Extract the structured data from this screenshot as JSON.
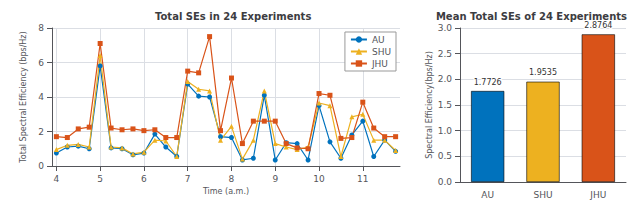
{
  "chart_data": [
    {
      "type": "line",
      "title": "Total SEs in 24 Experiments",
      "xlabel": "Time (a.m.)",
      "ylabel": "Total Spectral Efficiency (bps/Hz)",
      "x": [
        4.0,
        4.25,
        4.5,
        4.75,
        5.0,
        5.25,
        5.5,
        5.75,
        6.0,
        6.25,
        6.5,
        6.75,
        7.0,
        7.25,
        7.5,
        7.75,
        8.0,
        8.25,
        8.5,
        8.75,
        9.0,
        9.25,
        9.5,
        9.75,
        10.0,
        10.25,
        10.5,
        10.75,
        11.0,
        11.25,
        11.5,
        11.75
      ],
      "series": [
        {
          "name": "AU",
          "color": "#0072BD",
          "marker": "circle",
          "values": [
            0.75,
            1.1,
            1.15,
            1.0,
            5.8,
            1.05,
            1.0,
            0.65,
            0.75,
            1.85,
            1.1,
            0.55,
            4.75,
            4.05,
            4.0,
            1.7,
            1.65,
            0.35,
            0.45,
            4.1,
            0.35,
            1.35,
            1.3,
            0.35,
            3.5,
            1.4,
            0.45,
            1.8,
            2.6,
            0.55,
            1.5,
            0.85
          ]
        },
        {
          "name": "SHU",
          "color": "#EDB120",
          "marker": "triangle",
          "values": [
            0.95,
            1.2,
            1.25,
            1.1,
            6.4,
            1.1,
            1.05,
            0.7,
            0.8,
            1.5,
            1.45,
            0.55,
            4.9,
            4.45,
            4.35,
            1.5,
            2.3,
            0.4,
            1.5,
            4.35,
            1.3,
            1.1,
            0.95,
            1.1,
            3.65,
            3.5,
            0.55,
            2.85,
            3.0,
            1.5,
            1.5,
            0.9
          ]
        },
        {
          "name": "JHU",
          "color": "#D95319",
          "marker": "square",
          "values": [
            1.7,
            1.65,
            2.15,
            2.25,
            7.1,
            2.2,
            2.1,
            2.15,
            2.05,
            2.1,
            1.65,
            1.65,
            5.5,
            5.4,
            7.5,
            2.05,
            5.1,
            1.3,
            2.6,
            2.6,
            2.6,
            1.3,
            1.05,
            1.0,
            4.2,
            4.1,
            1.6,
            1.65,
            3.7,
            2.2,
            1.7,
            1.7
          ]
        }
      ],
      "xlim": [
        3.9,
        11.85
      ],
      "xticks": [
        4,
        5,
        6,
        7,
        8,
        9,
        10,
        11
      ],
      "ylim": [
        0,
        8
      ],
      "yticks": [
        0,
        2,
        4,
        6,
        8
      ],
      "grid": true,
      "legend": "upper right"
    },
    {
      "type": "bar",
      "title": "Mean Total SEs of 24 Experiments",
      "ylabel": "Spectral Efficiency(bps/Hz)",
      "categories": [
        "AU",
        "SHU",
        "JHU"
      ],
      "values": [
        1.7726,
        1.9535,
        2.8764
      ],
      "colors": [
        "#0072BD",
        "#EDB120",
        "#D95319"
      ],
      "ylim": [
        0,
        3
      ],
      "yticks": [
        {
          "value": 0,
          "label": "0.0"
        },
        0.5,
        {
          "value": 1,
          "label": "1.0"
        },
        1.5,
        {
          "value": 2,
          "label": "2.0"
        },
        2.5,
        {
          "value": 3,
          "label": "3.0"
        }
      ],
      "grid": "y",
      "data_labels": true
    }
  ]
}
